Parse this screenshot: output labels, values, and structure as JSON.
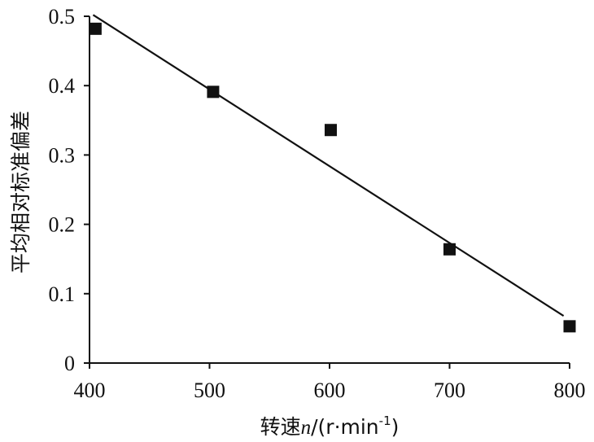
{
  "chart_data": {
    "type": "scatter",
    "xlabel": {
      "prefix": "转速",
      "var": "n",
      "unit_open": "/(r·min",
      "unit_sup": "-1",
      "unit_close": ")"
    },
    "ylabel": "平均相对标准偏差",
    "xlim": [
      400,
      800
    ],
    "ylim": [
      0,
      0.5
    ],
    "x_ticks": [
      400,
      500,
      600,
      700,
      800
    ],
    "x_tick_labels": [
      "400",
      "500",
      "600",
      "700",
      "800"
    ],
    "y_ticks": [
      0,
      0.1,
      0.2,
      0.3,
      0.4,
      0.5
    ],
    "y_tick_labels": [
      "0",
      "0.1",
      "0.2",
      "0.3",
      "0.4",
      "0.5"
    ],
    "grid": false,
    "legend": "none",
    "series": [
      {
        "marker": "square",
        "color": "#111111",
        "x": [
          405,
          503,
          601,
          700,
          800
        ],
        "y": [
          0.482,
          0.391,
          0.336,
          0.164,
          0.053
        ]
      }
    ],
    "trendline": {
      "color": "#111111",
      "points": [
        [
          403,
          0.502
        ],
        [
          795,
          0.068
        ]
      ]
    }
  }
}
